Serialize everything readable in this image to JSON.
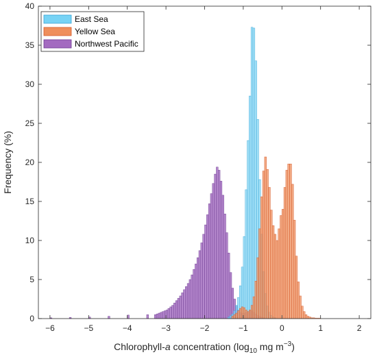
{
  "chart_data": {
    "type": "histogram",
    "xlabel": {
      "prefix": "Chlorophyll-",
      "italic": "a",
      "middle": " concentration (log",
      "sub": "10",
      "unit": " mg m",
      "sup": "−3",
      "suffix": ")"
    },
    "ylabel": "Frequency (%)",
    "xlim": [
      -6.3,
      2.3
    ],
    "ylim": [
      0,
      40
    ],
    "x_ticks": [
      -6,
      -5,
      -4,
      -3,
      -2,
      -1,
      0,
      1,
      2
    ],
    "x_tick_labels": [
      "−6",
      "−5",
      "−4",
      "−3",
      "−2",
      "−1",
      "0",
      "1",
      "2"
    ],
    "y_ticks": [
      0,
      5,
      10,
      15,
      20,
      25,
      30,
      35,
      40
    ],
    "y_tick_labels": [
      "0",
      "5",
      "10",
      "15",
      "20",
      "25",
      "30",
      "35",
      "40"
    ],
    "bin_width": 0.05,
    "legend_position": "top-left",
    "overlay_order": [
      "Northwest Pacific",
      "East Sea",
      "Yellow Sea"
    ],
    "series": [
      {
        "name": "East Sea",
        "fill": "#77d3f5",
        "stroke": "#3aa5d6",
        "opacity": 0.65,
        "x": [
          -1.4,
          -1.35,
          -1.3,
          -1.25,
          -1.2,
          -1.15,
          -1.1,
          -1.05,
          -1.0,
          -0.95,
          -0.9,
          -0.85,
          -0.8,
          -0.75,
          -0.7,
          -0.65,
          -0.6,
          -0.55,
          -0.5,
          -0.45,
          -0.4,
          -0.35,
          -0.3,
          -0.25,
          -0.2
        ],
        "values": [
          0.2,
          0.4,
          0.6,
          1.0,
          1.7,
          2.7,
          4.2,
          6.6,
          10.5,
          16.5,
          22.8,
          28.5,
          37.3,
          37.2,
          33.0,
          25.5,
          17.8,
          10.8,
          6.0,
          3.2,
          1.6,
          0.8,
          0.4,
          0.2,
          0.1
        ]
      },
      {
        "name": "Yellow Sea",
        "fill": "#ef8f5c",
        "stroke": "#d45a2a",
        "opacity": 0.75,
        "x": [
          -1.3,
          -1.25,
          -1.2,
          -1.15,
          -1.1,
          -1.05,
          -1.0,
          -0.95,
          -0.9,
          -0.85,
          -0.8,
          -0.75,
          -0.7,
          -0.65,
          -0.6,
          -0.55,
          -0.5,
          -0.45,
          -0.4,
          -0.35,
          -0.3,
          -0.25,
          -0.2,
          -0.15,
          -0.1,
          -0.05,
          0.0,
          0.05,
          0.1,
          0.15,
          0.2,
          0.25,
          0.3,
          0.35,
          0.4,
          0.45,
          0.5,
          0.55,
          0.6,
          0.65,
          0.7,
          0.75,
          0.8,
          0.85,
          0.9,
          0.95
        ],
        "values": [
          0.3,
          0.5,
          0.7,
          1.0,
          1.3,
          1.5,
          1.4,
          1.1,
          0.9,
          1.1,
          1.7,
          2.8,
          4.8,
          7.8,
          11.5,
          15.6,
          18.9,
          20.7,
          19.1,
          16.8,
          13.9,
          11.9,
          10.8,
          10.0,
          11.5,
          13.2,
          14.0,
          16.8,
          19.0,
          19.8,
          19.8,
          17.2,
          12.6,
          8.0,
          4.7,
          2.9,
          1.6,
          0.9,
          0.5,
          0.3,
          0.2,
          0.1,
          0.1,
          0.05,
          0.05,
          0.05
        ]
      },
      {
        "name": "Northwest Pacific",
        "fill": "#a36ac0",
        "stroke": "#6e3d91",
        "opacity": 0.8,
        "x": [
          -6.0,
          -5.5,
          -5.0,
          -4.5,
          -4.0,
          -3.5,
          -3.3,
          -3.25,
          -3.2,
          -3.15,
          -3.1,
          -3.05,
          -3.0,
          -2.95,
          -2.9,
          -2.85,
          -2.8,
          -2.75,
          -2.7,
          -2.65,
          -2.6,
          -2.55,
          -2.5,
          -2.45,
          -2.4,
          -2.35,
          -2.3,
          -2.25,
          -2.2,
          -2.15,
          -2.1,
          -2.05,
          -2.0,
          -1.95,
          -1.9,
          -1.85,
          -1.8,
          -1.75,
          -1.7,
          -1.65,
          -1.6,
          -1.55,
          -1.5,
          -1.45,
          -1.4,
          -1.35,
          -1.3,
          -1.25,
          -1.2,
          -1.15,
          -1.1,
          -1.05,
          -1.0,
          -0.95,
          -0.9,
          -0.85,
          -0.8,
          -0.75,
          -0.7,
          -0.65,
          -0.6,
          -0.55,
          -0.5
        ],
        "values": [
          0.1,
          0.15,
          0.2,
          0.3,
          0.45,
          0.5,
          0.5,
          0.6,
          0.7,
          0.8,
          0.9,
          1.0,
          1.1,
          1.3,
          1.5,
          1.7,
          2.0,
          2.3,
          2.6,
          2.9,
          3.3,
          3.7,
          4.1,
          4.5,
          5.0,
          5.6,
          6.3,
          7.0,
          7.8,
          8.7,
          9.7,
          10.8,
          12.0,
          13.3,
          14.7,
          16.0,
          17.3,
          18.5,
          19.4,
          19.0,
          17.6,
          15.8,
          13.4,
          11.0,
          8.4,
          5.9,
          3.9,
          2.5,
          1.6,
          1.1,
          0.8,
          0.7,
          0.7,
          0.8,
          0.9,
          1.0,
          1.0,
          0.8,
          0.6,
          0.4,
          0.3,
          0.2,
          0.1
        ]
      }
    ]
  }
}
